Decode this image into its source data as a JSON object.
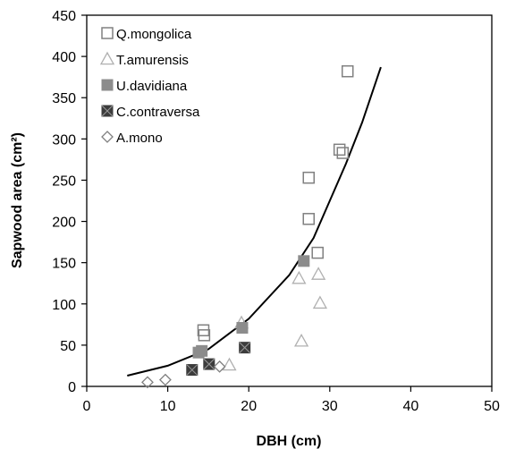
{
  "chart_data": {
    "type": "scatter",
    "title": "",
    "xlabel": "DBH (cm)",
    "ylabel": "Sapwood area (cm²)",
    "xlim": [
      0,
      50
    ],
    "ylim": [
      0,
      450
    ],
    "x_ticks": [
      0,
      10,
      20,
      30,
      40,
      50
    ],
    "y_ticks": [
      0,
      50,
      100,
      150,
      200,
      250,
      300,
      350,
      400,
      450
    ],
    "grid": false,
    "legend_position": "top-left",
    "series": [
      {
        "name": "Q.mongolica",
        "marker": "open-square",
        "color": "#808080",
        "points": [
          [
            14.4,
            68
          ],
          [
            14.5,
            62
          ],
          [
            27.4,
            253
          ],
          [
            27.4,
            203
          ],
          [
            28.5,
            162
          ],
          [
            31.2,
            287
          ],
          [
            31.6,
            283
          ],
          [
            32.2,
            382
          ]
        ]
      },
      {
        "name": "T.amurensis",
        "marker": "open-triangle",
        "color": "#b0b0b0",
        "points": [
          [
            17.6,
            26
          ],
          [
            19.1,
            77
          ],
          [
            26.2,
            131
          ],
          [
            26.5,
            55
          ],
          [
            28.6,
            136
          ],
          [
            28.8,
            101
          ]
        ]
      },
      {
        "name": "U.davidiana",
        "marker": "filled-square",
        "color": "#8c8c8c",
        "points": [
          [
            13.8,
            41
          ],
          [
            14.2,
            43
          ],
          [
            19.2,
            71
          ],
          [
            26.8,
            152
          ]
        ]
      },
      {
        "name": "C.contraversa",
        "marker": "filled-x-square",
        "color": "#3c3c3c",
        "points": [
          [
            13.0,
            20
          ],
          [
            15.1,
            27
          ],
          [
            19.5,
            47
          ]
        ]
      },
      {
        "name": "A.mono",
        "marker": "open-diamond",
        "color": "#808080",
        "points": [
          [
            7.5,
            5
          ],
          [
            9.7,
            8
          ],
          [
            16.4,
            24
          ]
        ]
      }
    ],
    "fit_curve": {
      "type": "exponential",
      "color": "#000000",
      "points": [
        [
          5,
          13
        ],
        [
          10,
          25
        ],
        [
          15,
          45
        ],
        [
          20,
          82
        ],
        [
          25,
          135
        ],
        [
          28,
          180
        ],
        [
          30,
          225
        ],
        [
          32,
          270
        ],
        [
          34,
          320
        ],
        [
          36.3,
          387
        ]
      ]
    }
  }
}
